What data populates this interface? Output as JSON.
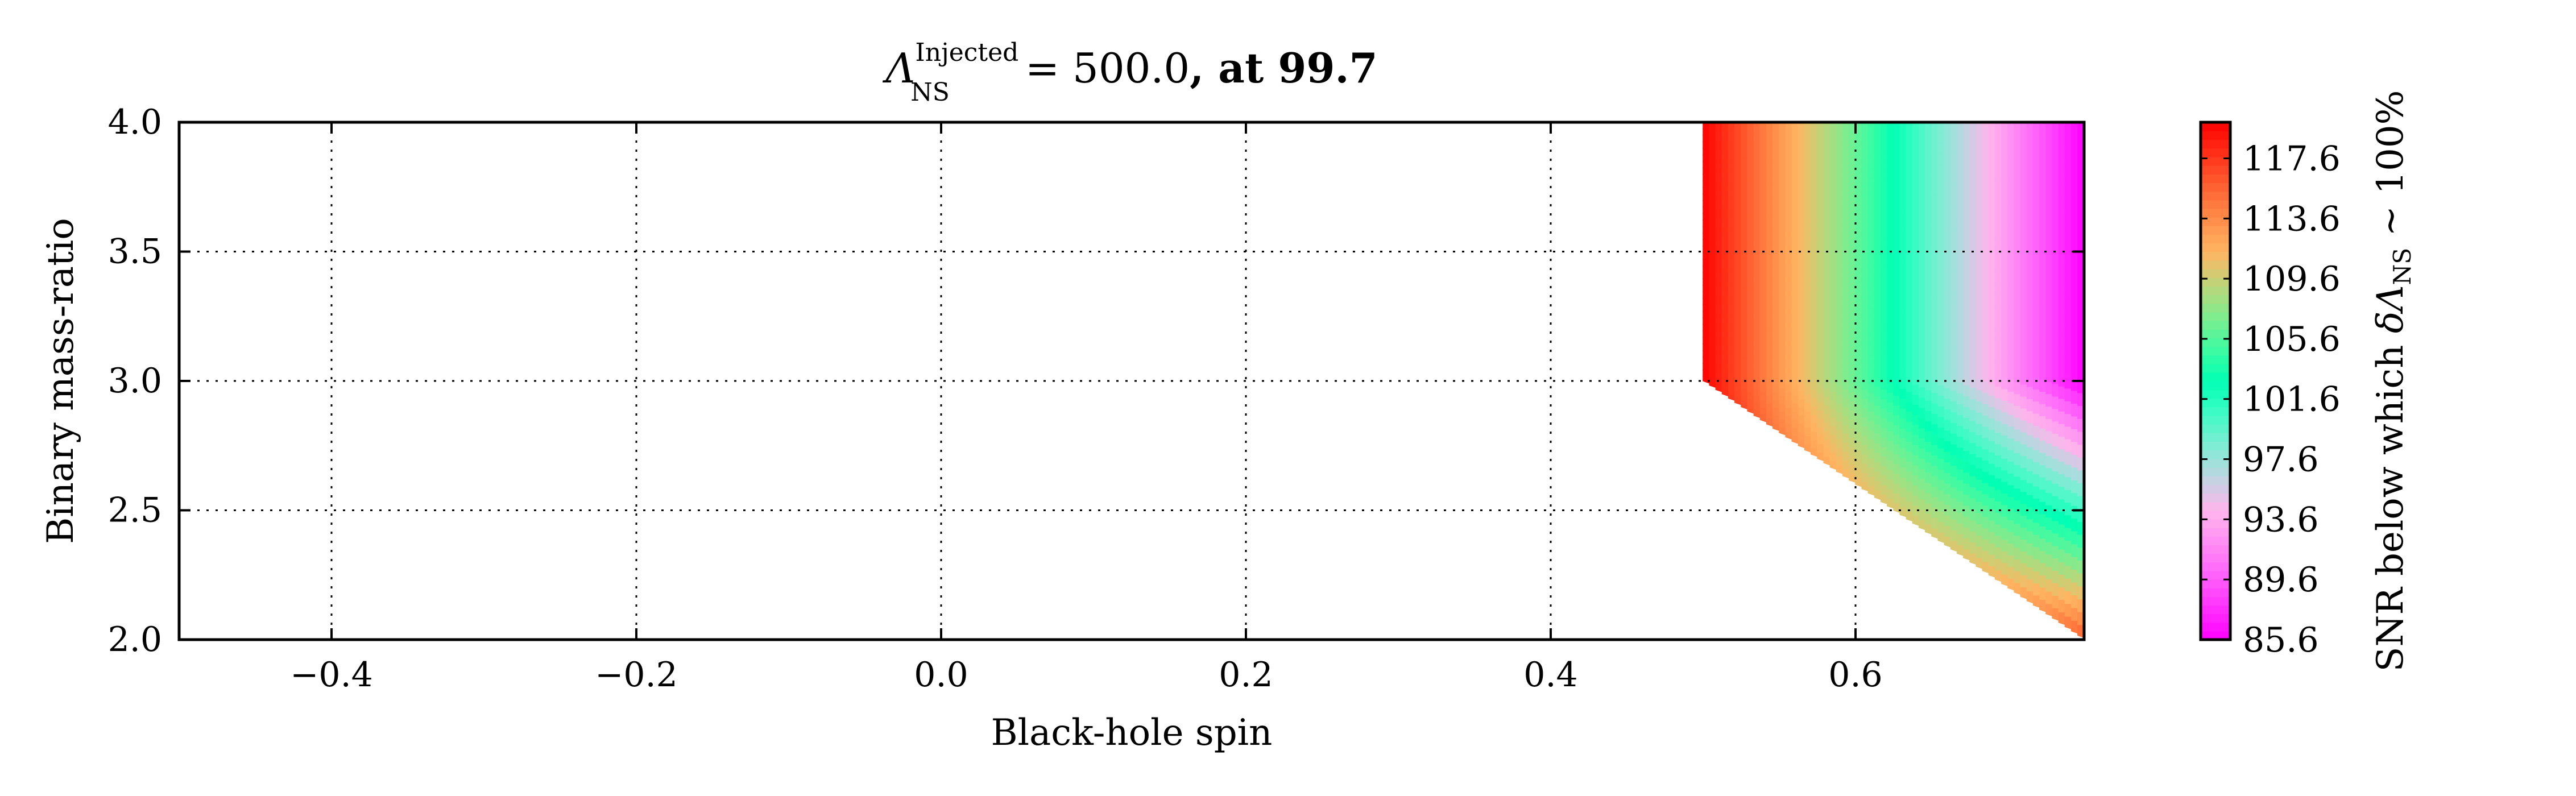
{
  "chart_data": {
    "type": "heatmap",
    "title": {
      "lambda": "Λ",
      "sup": "Injected",
      "sub": "NS",
      "value_text": " = 500.0",
      "suffix": ", at 99.7"
    },
    "xlabel": "Black-hole spin",
    "ylabel": "Binary mass-ratio",
    "xlim": [
      -0.5,
      0.75
    ],
    "ylim": [
      2.0,
      4.0
    ],
    "x_ticks": [
      {
        "value": -0.4,
        "label": "−0.4"
      },
      {
        "value": -0.2,
        "label": "−0.2"
      },
      {
        "value": 0.0,
        "label": "0.0"
      },
      {
        "value": 0.2,
        "label": "0.2"
      },
      {
        "value": 0.4,
        "label": "0.4"
      },
      {
        "value": 0.6,
        "label": "0.6"
      }
    ],
    "y_ticks": [
      {
        "value": 2.0,
        "label": "2.0"
      },
      {
        "value": 2.5,
        "label": "2.5"
      },
      {
        "value": 3.0,
        "label": "3.0"
      },
      {
        "value": 3.5,
        "label": "3.5"
      },
      {
        "value": 4.0,
        "label": "4.0"
      }
    ],
    "grid": true,
    "grid_style": "dotted",
    "filled_region": {
      "description_points": [
        [
          0.5,
          4.0
        ],
        [
          0.75,
          4.0
        ],
        [
          0.75,
          2.0
        ],
        [
          0.5,
          3.0
        ]
      ],
      "snr_at_spin_0_5": 120.0,
      "snr_at_spin_0_75_q_high": 85.6,
      "snr_at_spin_0_75_q_2": 116.0,
      "q_break": 3.0
    },
    "colormap": "rainbow",
    "colorbar": {
      "min": 85.6,
      "max": 120.0,
      "ticks": [
        {
          "value": 117.6,
          "label": "117.6"
        },
        {
          "value": 113.6,
          "label": "113.6"
        },
        {
          "value": 109.6,
          "label": "109.6"
        },
        {
          "value": 105.6,
          "label": "105.6"
        },
        {
          "value": 101.6,
          "label": "101.6"
        },
        {
          "value": 97.6,
          "label": "97.6"
        },
        {
          "value": 93.6,
          "label": "93.6"
        },
        {
          "value": 89.6,
          "label": "89.6"
        },
        {
          "value": 85.6,
          "label": "85.6"
        }
      ],
      "label_prefix": "SNR below which ",
      "label_delta": "δΛ",
      "label_sub": "NS",
      "label_suffix": " ∼ 100%"
    }
  }
}
